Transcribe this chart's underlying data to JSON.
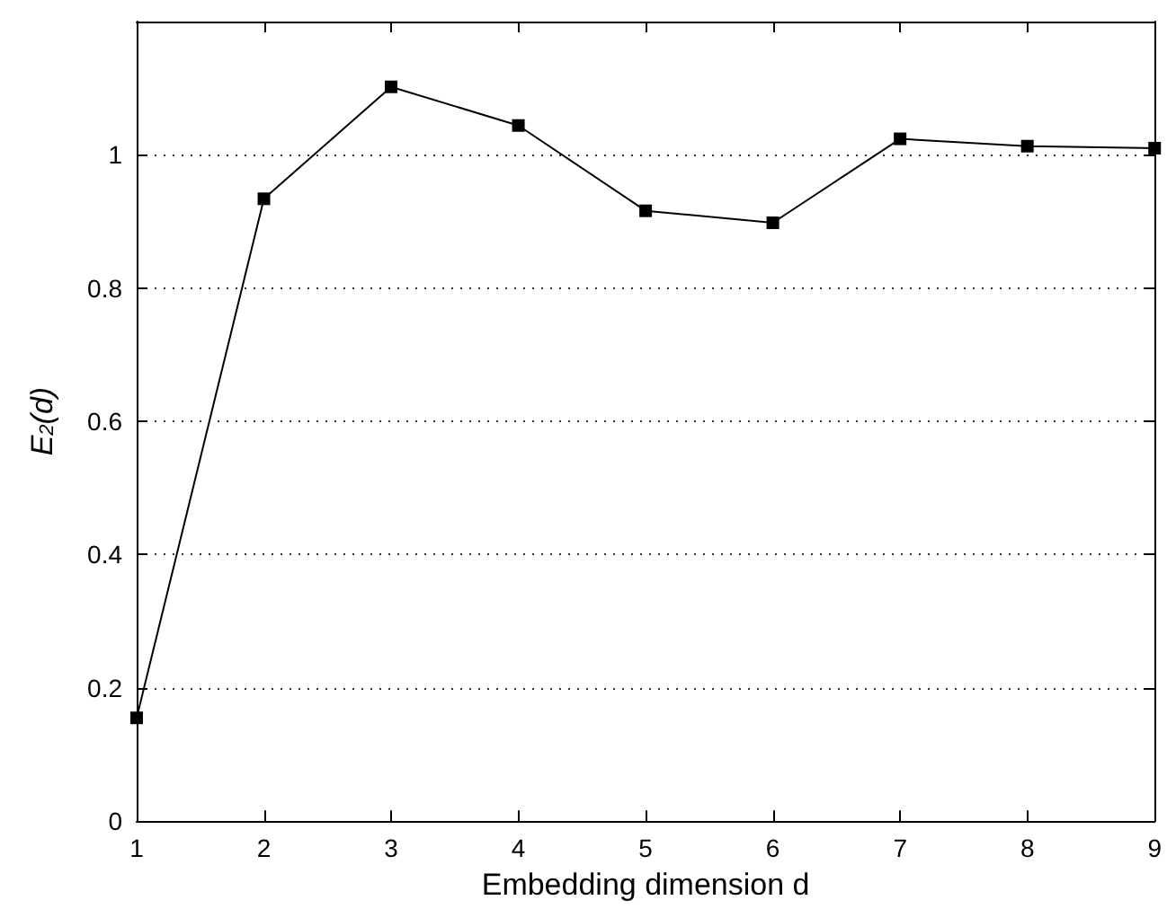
{
  "chart_data": {
    "type": "line",
    "xlabel": "Embedding dimension d",
    "ylabel": "E$_{2}$(d)",
    "x": [
      1,
      2,
      3,
      4,
      5,
      6,
      7,
      8,
      9
    ],
    "series": [
      {
        "color": "#000000",
        "values": [
          0.155,
          0.934,
          1.102,
          1.044,
          0.916,
          0.898,
          1.024,
          1.013,
          1.01
        ]
      }
    ],
    "xlim": [
      1,
      9
    ],
    "xticks": [
      1,
      2,
      3,
      4,
      5,
      6,
      7,
      8,
      9
    ],
    "ylim": [
      0,
      1.2
    ],
    "yticks": [
      0,
      0.2,
      0.4,
      0.6,
      0.8,
      1
    ],
    "grid": "y",
    "marker": "square",
    "line_style": "solid"
  }
}
